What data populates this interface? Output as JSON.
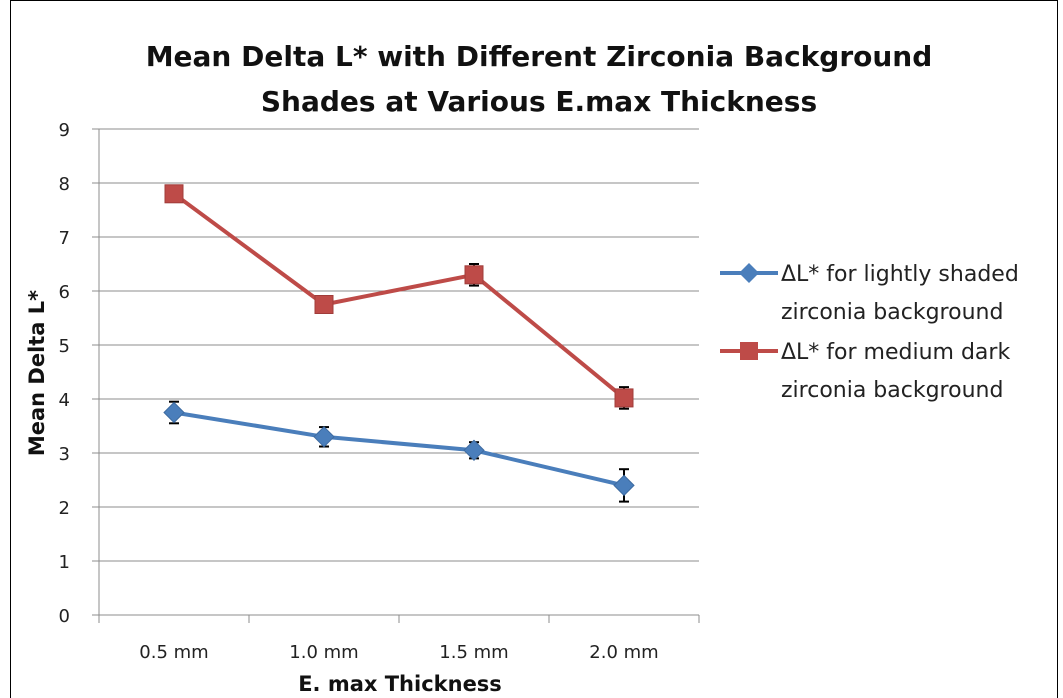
{
  "chart_data": {
    "type": "line",
    "title_lines": [
      "Mean Delta L* with Different Zirconia Background",
      "Shades at Various E.max Thickness"
    ],
    "xlabel": "E. max Thickness",
    "ylabel": "Mean Delta L*",
    "categories": [
      "0.5 mm",
      "1.0 mm",
      "1.5 mm",
      "2.0 mm"
    ],
    "ylim": [
      0,
      9
    ],
    "yticks": [
      "0",
      "1",
      "2",
      "3",
      "4",
      "5",
      "6",
      "7",
      "8",
      "9"
    ],
    "grid": true,
    "legend_position": "right",
    "series": [
      {
        "name_lines": [
          "ΔL* for lightly shaded",
          "zirconia background"
        ],
        "color": "#4a7ebb",
        "marker": "diamond",
        "values": [
          3.75,
          3.3,
          3.05,
          2.4
        ],
        "errors": [
          0.2,
          0.18,
          0.15,
          0.3
        ]
      },
      {
        "name_lines": [
          "ΔL* for medium dark",
          "zirconia background"
        ],
        "color": "#be4b48",
        "marker": "square",
        "values": [
          7.8,
          5.75,
          6.3,
          4.02
        ],
        "errors": [
          0.08,
          0.05,
          0.2,
          0.2
        ]
      }
    ]
  }
}
